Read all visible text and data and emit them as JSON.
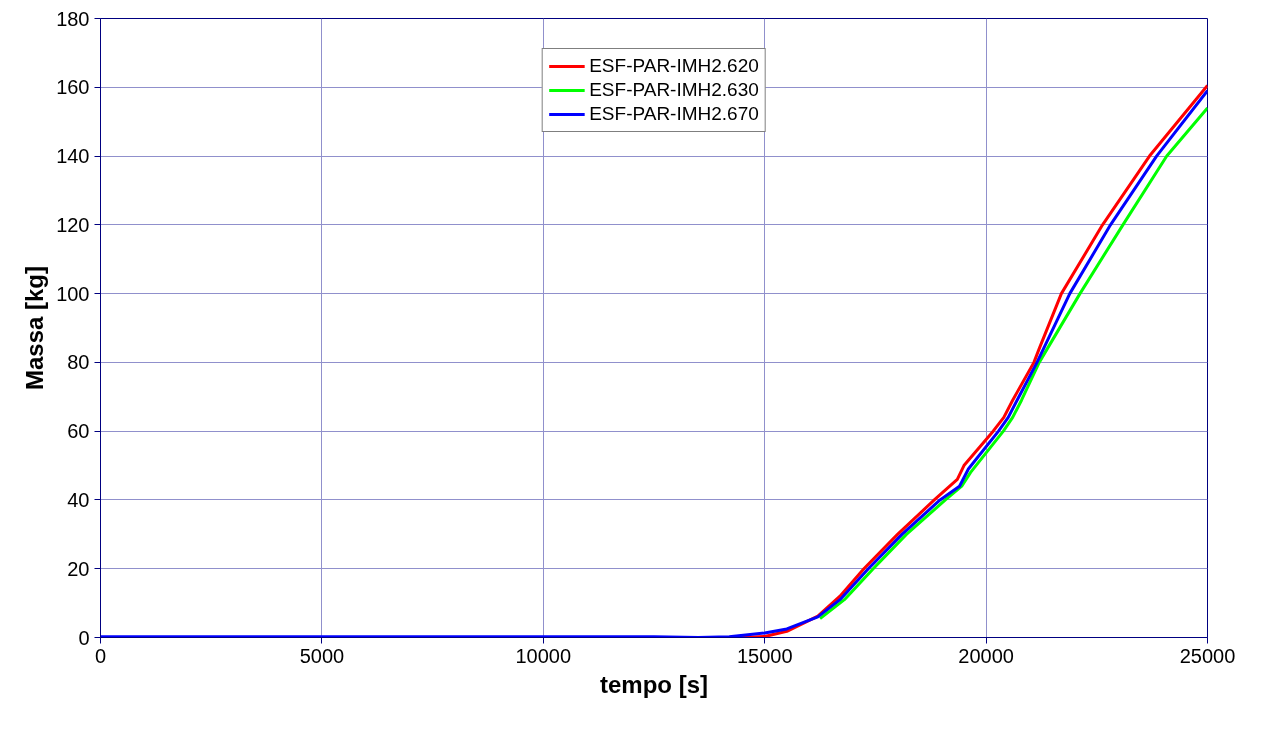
{
  "chart_data": {
    "type": "line",
    "xlabel": "tempo [s]",
    "ylabel": "Massa [kg]",
    "xlim": [
      0,
      25000
    ],
    "ylim": [
      0,
      180
    ],
    "xticks": [
      0,
      5000,
      10000,
      15000,
      20000,
      25000
    ],
    "yticks": [
      0,
      20,
      40,
      60,
      80,
      100,
      120,
      140,
      160,
      180
    ],
    "grid": true,
    "legend": "top",
    "marker": "none",
    "line_style": "solid",
    "series": [
      {
        "name": "ESF-PAR-IMH2.620",
        "color": "#ff0000",
        "x": [
          13200,
          14500,
          15000,
          15500,
          16200,
          16700,
          17240,
          18000,
          18830,
          19350,
          19500,
          20160,
          20400,
          20600,
          21080,
          21200,
          21700,
          22630,
          23690,
          25000
        ],
        "values": [
          0,
          0,
          0.3,
          1.8,
          6.2,
          12,
          20,
          30,
          40,
          46,
          50,
          60,
          64,
          69,
          80,
          84,
          100,
          120,
          140,
          160.5
        ]
      },
      {
        "name": "ESF-PAR-IMH2.630",
        "color": "#00ff00",
        "x": [
          16250,
          16800,
          17450,
          18200,
          19080,
          19450,
          19650,
          20390,
          20600,
          20800,
          21200,
          22120,
          23090,
          24080,
          25000
        ],
        "values": [
          5.5,
          11,
          20,
          30,
          40,
          44,
          48,
          60,
          64,
          69,
          80,
          100,
          120,
          140,
          154
        ]
      },
      {
        "name": "ESF-PAR-IMH2.670",
        "color": "#0000ff",
        "x": [
          0,
          12500,
          13500,
          14200,
          15000,
          15500,
          16200,
          16700,
          17340,
          18100,
          18960,
          19400,
          19600,
          20280,
          20500,
          20700,
          21150,
          21890,
          22810,
          23850,
          25000
        ],
        "values": [
          0.2,
          0.2,
          0,
          0.2,
          1.3,
          2.5,
          6,
          11,
          20,
          30,
          40,
          44,
          49,
          60,
          64,
          69,
          80,
          100,
          120,
          140,
          159
        ]
      }
    ]
  }
}
